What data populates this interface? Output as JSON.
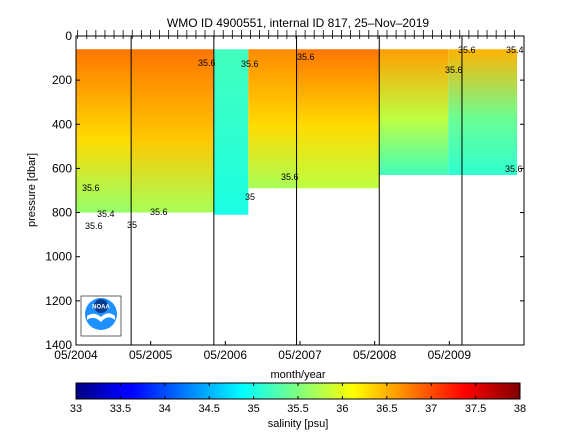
{
  "chart_data": {
    "type": "heatmap",
    "title": "WMO ID 4900551, internal ID 817, 25–Nov–2019",
    "xlabel": "month/year",
    "ylabel": "pressure [dbar]",
    "colorbar_label": "salinity [psu]",
    "y_axis": {
      "range": [
        0,
        1400
      ],
      "reversed": true,
      "ticks": [
        0,
        200,
        400,
        600,
        800,
        1000,
        1200,
        1400
      ],
      "tick_labels": [
        "0",
        "200",
        "400",
        "600",
        "800",
        "1000",
        "1200",
        "1400"
      ]
    },
    "x_axis": {
      "range": [
        "2004-05",
        "2009-10"
      ],
      "tick_labels": [
        "05/2004",
        "05/2005",
        "05/2006",
        "05/2007",
        "05/2008",
        "05/2009"
      ]
    },
    "colorbar": {
      "range": [
        33,
        38
      ],
      "ticks": [
        "33",
        "33.5",
        "34",
        "34.5",
        "35",
        "35.5",
        "36",
        "36.5",
        "37",
        "37.5",
        "38"
      ],
      "colormap": "jet"
    },
    "year_boundaries": [
      "2005-01",
      "2006-01",
      "2007-01",
      "2008-01",
      "2009-01"
    ],
    "profile_depth_limits": [
      {
        "start": "2004-05",
        "end": "2006-01",
        "max_pressure": 800
      },
      {
        "start": "2006-01",
        "end": "2006-06",
        "max_pressure": 810
      },
      {
        "start": "2006-06",
        "end": "2007-01",
        "max_pressure": 690
      },
      {
        "start": "2007-01",
        "end": "2008-01",
        "max_pressure": 690
      },
      {
        "start": "2008-01",
        "end": "2009-09",
        "max_pressure": 630
      }
    ],
    "salinity_segments": [
      {
        "start": "2004-05",
        "end": "2005-01",
        "surface": 36.8,
        "mid": 36.3,
        "deep": 35.6
      },
      {
        "start": "2005-01",
        "end": "2006-01",
        "surface": 36.8,
        "mid": 36.4,
        "deep": 35.7
      },
      {
        "start": "2006-01",
        "end": "2006-06",
        "surface": 35.2,
        "mid": 35.1,
        "deep": 35.0
      },
      {
        "start": "2006-06",
        "end": "2007-01",
        "surface": 36.7,
        "mid": 36.3,
        "deep": 35.7
      },
      {
        "start": "2007-01",
        "end": "2008-01",
        "surface": 36.8,
        "mid": 36.3,
        "deep": 35.8
      },
      {
        "start": "2008-01",
        "end": "2008-11",
        "surface": 36.6,
        "mid": 35.8,
        "deep": 35.2
      },
      {
        "start": "2008-11",
        "end": "2009-09",
        "surface": 36.5,
        "mid": 35.4,
        "deep": 35.1
      }
    ],
    "contour_labels": [
      "35.6",
      "35.6",
      "35.6",
      "35.6",
      "35.6",
      "35.6",
      "35.4",
      "35",
      "35",
      "35.6",
      "35.6",
      "35.6",
      "35.4",
      "35.6"
    ],
    "logo": "NOAA"
  }
}
